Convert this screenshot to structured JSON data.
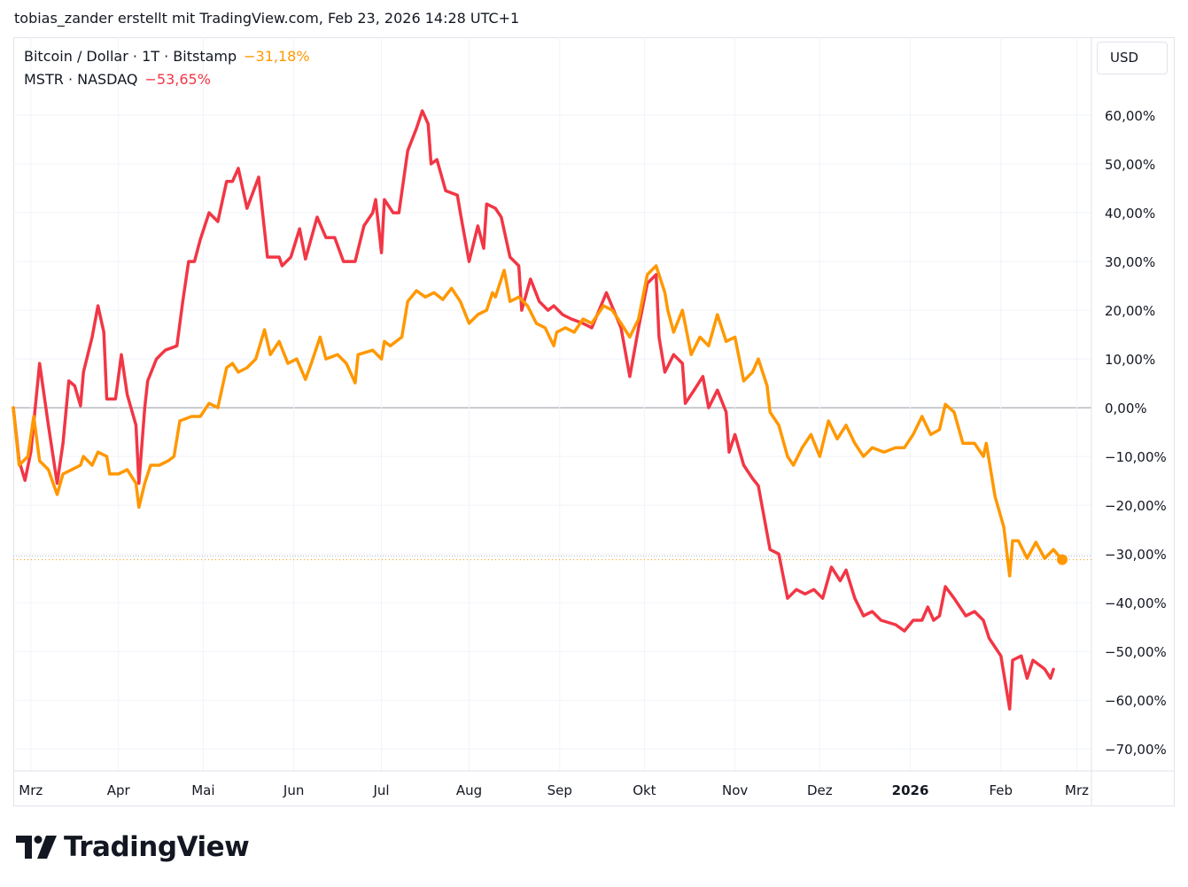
{
  "header": {
    "attribution": "tobias_zander erstellt mit TradingView.com, Feb 23, 2026 14:28 UTC+1"
  },
  "currency_button": "USD",
  "logo_text": "TradingView",
  "legend": [
    {
      "label": "Bitcoin / Dollar · 1T · Bitstamp",
      "value": "−31,18%",
      "color": "#ff9800"
    },
    {
      "label": "MSTR · NASDAQ",
      "value": "−53,65%",
      "color": "#f23645"
    }
  ],
  "chart_data": {
    "type": "line",
    "title": "",
    "xlabel": "",
    "ylabel": "",
    "x_unit": "days since chart start (approx. Feb 24, 2025)",
    "xlim": [
      0,
      369
    ],
    "ylim": [
      -74.5,
      76
    ],
    "grid": true,
    "legend_position": "top-left",
    "x_ticks": [
      {
        "day": 6,
        "label": "Mrz",
        "bold": false
      },
      {
        "day": 36,
        "label": "Apr",
        "bold": false
      },
      {
        "day": 65,
        "label": "Mai",
        "bold": false
      },
      {
        "day": 96,
        "label": "Jun",
        "bold": false
      },
      {
        "day": 126,
        "label": "Jul",
        "bold": false
      },
      {
        "day": 156,
        "label": "Aug",
        "bold": false
      },
      {
        "day": 187,
        "label": "Sep",
        "bold": false
      },
      {
        "day": 216,
        "label": "Okt",
        "bold": false
      },
      {
        "day": 247,
        "label": "Nov",
        "bold": false
      },
      {
        "day": 276,
        "label": "Dez",
        "bold": false
      },
      {
        "day": 307,
        "label": "2026",
        "bold": true
      },
      {
        "day": 338,
        "label": "Feb",
        "bold": false
      },
      {
        "day": 364,
        "label": "Mrz",
        "bold": false
      }
    ],
    "y_ticks": [
      {
        "value": 60,
        "label": "60,00%"
      },
      {
        "value": 50,
        "label": "50,00%"
      },
      {
        "value": 40,
        "label": "40,00%"
      },
      {
        "value": 30,
        "label": "30,00%"
      },
      {
        "value": 20,
        "label": "20,00%"
      },
      {
        "value": 10,
        "label": "10,00%"
      },
      {
        "value": 0,
        "label": "0,00%"
      },
      {
        "value": -10,
        "label": "−10,00%"
      },
      {
        "value": -20,
        "label": "−20,00%"
      },
      {
        "value": -30,
        "label": "−30,00%"
      },
      {
        "value": -40,
        "label": "−40,00%"
      },
      {
        "value": -50,
        "label": "−50,00%"
      },
      {
        "value": -60,
        "label": "−60,00%"
      },
      {
        "value": -70,
        "label": "−70,00%"
      }
    ],
    "series": [
      {
        "name": "Bitcoin / Dollar · 1T · Bitstamp",
        "color": "#ff9800",
        "last": -31.18,
        "points": [
          [
            0,
            0
          ],
          [
            2,
            -11.8
          ],
          [
            5,
            -10
          ],
          [
            7,
            -1.8
          ],
          [
            9,
            -10.9
          ],
          [
            12,
            -12.7
          ],
          [
            15,
            -17.8
          ],
          [
            17,
            -13.6
          ],
          [
            20,
            -12.7
          ],
          [
            23,
            -11.8
          ],
          [
            24,
            -10
          ],
          [
            27,
            -11.8
          ],
          [
            29,
            -9.1
          ],
          [
            32,
            -10
          ],
          [
            33,
            -13.6
          ],
          [
            36,
            -13.6
          ],
          [
            39,
            -12.7
          ],
          [
            42,
            -15.5
          ],
          [
            43,
            -20.4
          ],
          [
            45,
            -15.5
          ],
          [
            47,
            -11.8
          ],
          [
            50,
            -11.8
          ],
          [
            53,
            -10.9
          ],
          [
            55,
            -10
          ],
          [
            57,
            -2.7
          ],
          [
            61,
            -1.8
          ],
          [
            64,
            -1.8
          ],
          [
            67,
            0.9
          ],
          [
            70,
            0
          ],
          [
            73,
            8.2
          ],
          [
            75,
            9.1
          ],
          [
            77,
            7.3
          ],
          [
            80,
            8.2
          ],
          [
            83,
            10
          ],
          [
            86,
            16
          ],
          [
            88,
            10.9
          ],
          [
            91,
            13.6
          ],
          [
            94,
            9.1
          ],
          [
            97,
            10
          ],
          [
            100,
            5.8
          ],
          [
            102,
            9.1
          ],
          [
            105,
            14.5
          ],
          [
            107,
            10
          ],
          [
            111,
            10.9
          ],
          [
            114,
            9.1
          ],
          [
            117,
            5.1
          ],
          [
            118,
            10.9
          ],
          [
            123,
            11.8
          ],
          [
            126,
            10
          ],
          [
            127,
            13.6
          ],
          [
            129,
            12.7
          ],
          [
            133,
            14.5
          ],
          [
            135,
            21.8
          ],
          [
            138,
            24
          ],
          [
            141,
            22.7
          ],
          [
            144,
            23.6
          ],
          [
            147,
            22.2
          ],
          [
            150,
            24.5
          ],
          [
            153,
            21.8
          ],
          [
            156,
            17.3
          ],
          [
            159,
            19.1
          ],
          [
            162,
            20
          ],
          [
            164,
            23.6
          ],
          [
            165,
            22.7
          ],
          [
            168,
            28.2
          ],
          [
            170,
            21.8
          ],
          [
            173,
            22.7
          ],
          [
            176,
            20.9
          ],
          [
            179,
            17.3
          ],
          [
            182,
            16.4
          ],
          [
            185,
            12.7
          ],
          [
            186,
            15.5
          ],
          [
            189,
            16.4
          ],
          [
            192,
            15.5
          ],
          [
            195,
            18.2
          ],
          [
            198,
            17.3
          ],
          [
            202,
            20.9
          ],
          [
            205,
            20
          ],
          [
            208,
            17.3
          ],
          [
            211,
            14.5
          ],
          [
            214,
            18.2
          ],
          [
            217,
            27.3
          ],
          [
            220,
            29.1
          ],
          [
            221,
            27.3
          ],
          [
            223,
            23.6
          ],
          [
            224,
            20
          ],
          [
            226,
            15.5
          ],
          [
            229,
            20
          ],
          [
            232,
            10.9
          ],
          [
            235,
            14.5
          ],
          [
            238,
            12.7
          ],
          [
            241,
            19.1
          ],
          [
            244,
            13.6
          ],
          [
            247,
            14.5
          ],
          [
            250,
            5.5
          ],
          [
            253,
            7.3
          ],
          [
            255,
            10
          ],
          [
            258,
            4.5
          ],
          [
            259,
            -0.9
          ],
          [
            262,
            -3.6
          ],
          [
            265,
            -10
          ],
          [
            267,
            -11.8
          ],
          [
            270,
            -8.2
          ],
          [
            273,
            -5.5
          ],
          [
            276,
            -10
          ],
          [
            279,
            -2.7
          ],
          [
            282,
            -6.4
          ],
          [
            285,
            -3.6
          ],
          [
            288,
            -7.3
          ],
          [
            291,
            -10
          ],
          [
            294,
            -8.2
          ],
          [
            298,
            -9.1
          ],
          [
            302,
            -8.2
          ],
          [
            305,
            -8.2
          ],
          [
            308,
            -5.5
          ],
          [
            311,
            -1.8
          ],
          [
            314,
            -5.5
          ],
          [
            317,
            -4.5
          ],
          [
            319,
            0.7
          ],
          [
            322,
            -0.9
          ],
          [
            325,
            -7.3
          ],
          [
            329,
            -7.3
          ],
          [
            332,
            -10
          ],
          [
            333,
            -7.3
          ],
          [
            336,
            -18.2
          ],
          [
            339,
            -24.5
          ],
          [
            341,
            -34.5
          ],
          [
            342,
            -27.3
          ],
          [
            344,
            -27.3
          ],
          [
            347,
            -30.9
          ],
          [
            350,
            -27.6
          ],
          [
            353,
            -30.9
          ],
          [
            356,
            -29.1
          ],
          [
            359,
            -31.18
          ]
        ]
      },
      {
        "name": "MSTR · NASDAQ",
        "color": "#f23645",
        "last": -53.65,
        "points": [
          [
            0,
            0
          ],
          [
            2,
            -10.9
          ],
          [
            4,
            -14.9
          ],
          [
            6,
            -9.1
          ],
          [
            9,
            9.1
          ],
          [
            12,
            -3.6
          ],
          [
            15,
            -15.5
          ],
          [
            17,
            -7.3
          ],
          [
            19,
            5.5
          ],
          [
            21,
            4.5
          ],
          [
            23,
            0.4
          ],
          [
            24,
            7.3
          ],
          [
            27,
            14.5
          ],
          [
            29,
            20.9
          ],
          [
            31,
            15.5
          ],
          [
            32,
            1.8
          ],
          [
            35,
            1.8
          ],
          [
            37,
            10.9
          ],
          [
            39,
            2.7
          ],
          [
            42,
            -3.6
          ],
          [
            43,
            -15.5
          ],
          [
            45,
            0
          ],
          [
            46,
            5.5
          ],
          [
            49,
            10
          ],
          [
            52,
            11.8
          ],
          [
            56,
            12.7
          ],
          [
            58,
            21.8
          ],
          [
            60,
            30
          ],
          [
            62,
            30
          ],
          [
            64,
            34.5
          ],
          [
            67,
            40
          ],
          [
            70,
            38.2
          ],
          [
            73,
            46.4
          ],
          [
            75,
            46.4
          ],
          [
            77,
            49.1
          ],
          [
            80,
            40.9
          ],
          [
            84,
            47.3
          ],
          [
            87,
            30.9
          ],
          [
            91,
            30.9
          ],
          [
            92,
            29.1
          ],
          [
            95,
            30.9
          ],
          [
            98,
            36.7
          ],
          [
            100,
            30.5
          ],
          [
            104,
            39.1
          ],
          [
            107,
            34.9
          ],
          [
            110,
            34.9
          ],
          [
            113,
            30
          ],
          [
            117,
            30
          ],
          [
            120,
            37.3
          ],
          [
            123,
            40
          ],
          [
            124,
            42.7
          ],
          [
            126,
            31.8
          ],
          [
            127,
            42.7
          ],
          [
            130,
            40
          ],
          [
            132,
            40
          ],
          [
            135,
            52.7
          ],
          [
            138,
            57.3
          ],
          [
            140,
            60.9
          ],
          [
            142,
            58.2
          ],
          [
            143,
            50
          ],
          [
            145,
            50.9
          ],
          [
            148,
            44.5
          ],
          [
            152,
            43.6
          ],
          [
            153,
            40
          ],
          [
            156,
            30
          ],
          [
            159,
            37.3
          ],
          [
            161,
            32.7
          ],
          [
            162,
            41.8
          ],
          [
            165,
            40.9
          ],
          [
            167,
            39.1
          ],
          [
            170,
            30.9
          ],
          [
            173,
            29.1
          ],
          [
            174,
            20
          ],
          [
            177,
            26.4
          ],
          [
            180,
            21.8
          ],
          [
            183,
            20
          ],
          [
            185,
            20.9
          ],
          [
            188,
            19.1
          ],
          [
            191,
            18.2
          ],
          [
            195,
            17.3
          ],
          [
            198,
            16.4
          ],
          [
            203,
            23.6
          ],
          [
            208,
            16.4
          ],
          [
            211,
            6.4
          ],
          [
            214,
            16.4
          ],
          [
            217,
            25.5
          ],
          [
            220,
            27.3
          ],
          [
            221,
            14.5
          ],
          [
            223,
            7.3
          ],
          [
            226,
            10.9
          ],
          [
            229,
            9.1
          ],
          [
            230,
            0.9
          ],
          [
            233,
            3.6
          ],
          [
            236,
            6.4
          ],
          [
            238,
            0
          ],
          [
            241,
            3.6
          ],
          [
            244,
            -0.9
          ],
          [
            245,
            -9.1
          ],
          [
            247,
            -5.5
          ],
          [
            250,
            -11.8
          ],
          [
            253,
            -14.5
          ],
          [
            255,
            -16
          ],
          [
            259,
            -29.1
          ],
          [
            262,
            -30
          ],
          [
            265,
            -39.1
          ],
          [
            268,
            -37.3
          ],
          [
            271,
            -38.2
          ],
          [
            274,
            -37.3
          ],
          [
            277,
            -39.1
          ],
          [
            280,
            -32.7
          ],
          [
            283,
            -35.5
          ],
          [
            285,
            -33.3
          ],
          [
            288,
            -39.1
          ],
          [
            291,
            -42.7
          ],
          [
            294,
            -41.8
          ],
          [
            297,
            -43.6
          ],
          [
            302,
            -44.5
          ],
          [
            305,
            -45.8
          ],
          [
            308,
            -43.6
          ],
          [
            311,
            -43.6
          ],
          [
            313,
            -40.9
          ],
          [
            315,
            -43.6
          ],
          [
            317,
            -42.7
          ],
          [
            319,
            -36.7
          ],
          [
            322,
            -39.1
          ],
          [
            326,
            -42.7
          ],
          [
            329,
            -41.8
          ],
          [
            332,
            -43.6
          ],
          [
            334,
            -47.3
          ],
          [
            338,
            -50.9
          ],
          [
            341,
            -61.8
          ],
          [
            342,
            -51.8
          ],
          [
            345,
            -50.9
          ],
          [
            347,
            -55.5
          ],
          [
            349,
            -51.8
          ],
          [
            353,
            -53.6
          ],
          [
            355,
            -55.5
          ],
          [
            356,
            -53.65
          ]
        ]
      }
    ]
  }
}
